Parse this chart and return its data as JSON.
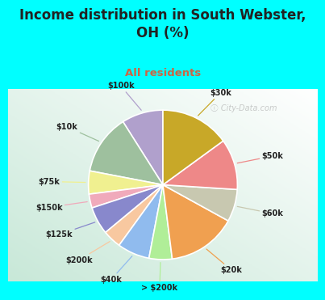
{
  "title": "Income distribution in South Webster,\nOH (%)",
  "subtitle": "All residents",
  "bg_color": "#00FFFF",
  "panel_gradient_top": "#f0faf8",
  "panel_gradient_bottom": "#c8e8d8",
  "watermark": "ⓘ City-Data.com",
  "labels": [
    "$100k",
    "$10k",
    "$75k",
    "$150k",
    "$125k",
    "$200k",
    "$40k",
    "> $200k",
    "$20k",
    "$60k",
    "$50k",
    "$30k"
  ],
  "values": [
    9,
    13,
    5,
    3,
    6,
    4,
    7,
    5,
    15,
    7,
    11,
    15
  ],
  "colors": [
    "#b0a0cc",
    "#9ec09e",
    "#f0f090",
    "#f0aabb",
    "#8888cc",
    "#f8c8a0",
    "#90bbee",
    "#b0ee98",
    "#f0a050",
    "#c8c8b0",
    "#ee8888",
    "#c8a828"
  ],
  "startangle": 90,
  "title_color": "#222222",
  "subtitle_color": "#cc6644",
  "label_color": "#222222",
  "title_fontsize": 12,
  "subtitle_fontsize": 9.5,
  "label_fontsize": 7,
  "watermark_color": "#aaaaaa"
}
